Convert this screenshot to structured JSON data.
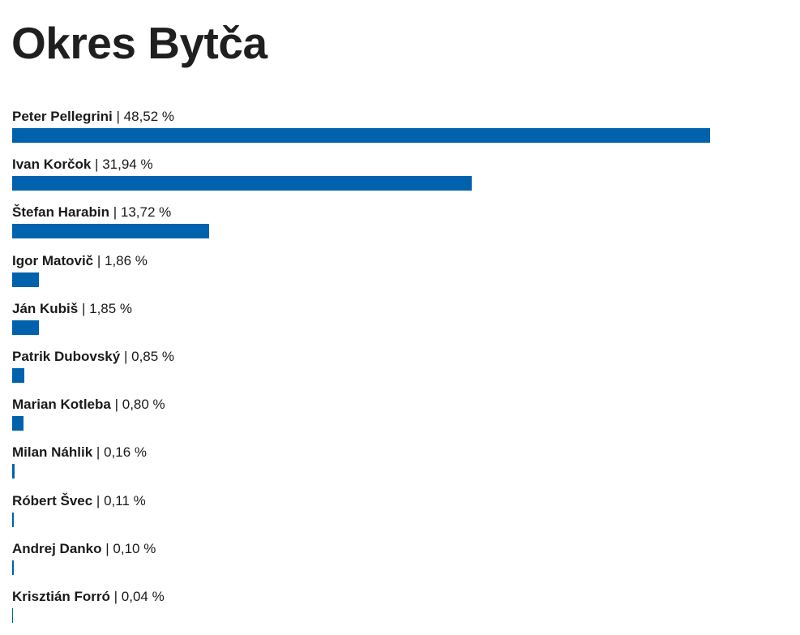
{
  "title": "Okres Bytča",
  "colors": {
    "bar": "#0062ad",
    "text": "#1a1a1a"
  },
  "chart_data": {
    "type": "bar",
    "orientation": "horizontal",
    "title": "Okres Bytča",
    "unit": "%",
    "xlim": [
      0,
      53
    ],
    "categories": [
      "Peter Pellegrini",
      "Ivan Korčok",
      "Štefan Harabin",
      "Igor Matovič",
      "Ján Kubiš",
      "Patrik Dubovský",
      "Marian Kotleba",
      "Milan Náhlik",
      "Róbert Švec",
      "Andrej Danko",
      "Krisztián Forró"
    ],
    "values": [
      48.52,
      31.94,
      13.72,
      1.86,
      1.85,
      0.85,
      0.8,
      0.16,
      0.11,
      0.1,
      0.04
    ],
    "value_labels": [
      "48,52 %",
      "31,94 %",
      "13,72 %",
      "1,86 %",
      "1,85 %",
      "0,85 %",
      "0,80 %",
      "0,16 %",
      "0,11 %",
      "0,10 %",
      "0,04 %"
    ]
  }
}
